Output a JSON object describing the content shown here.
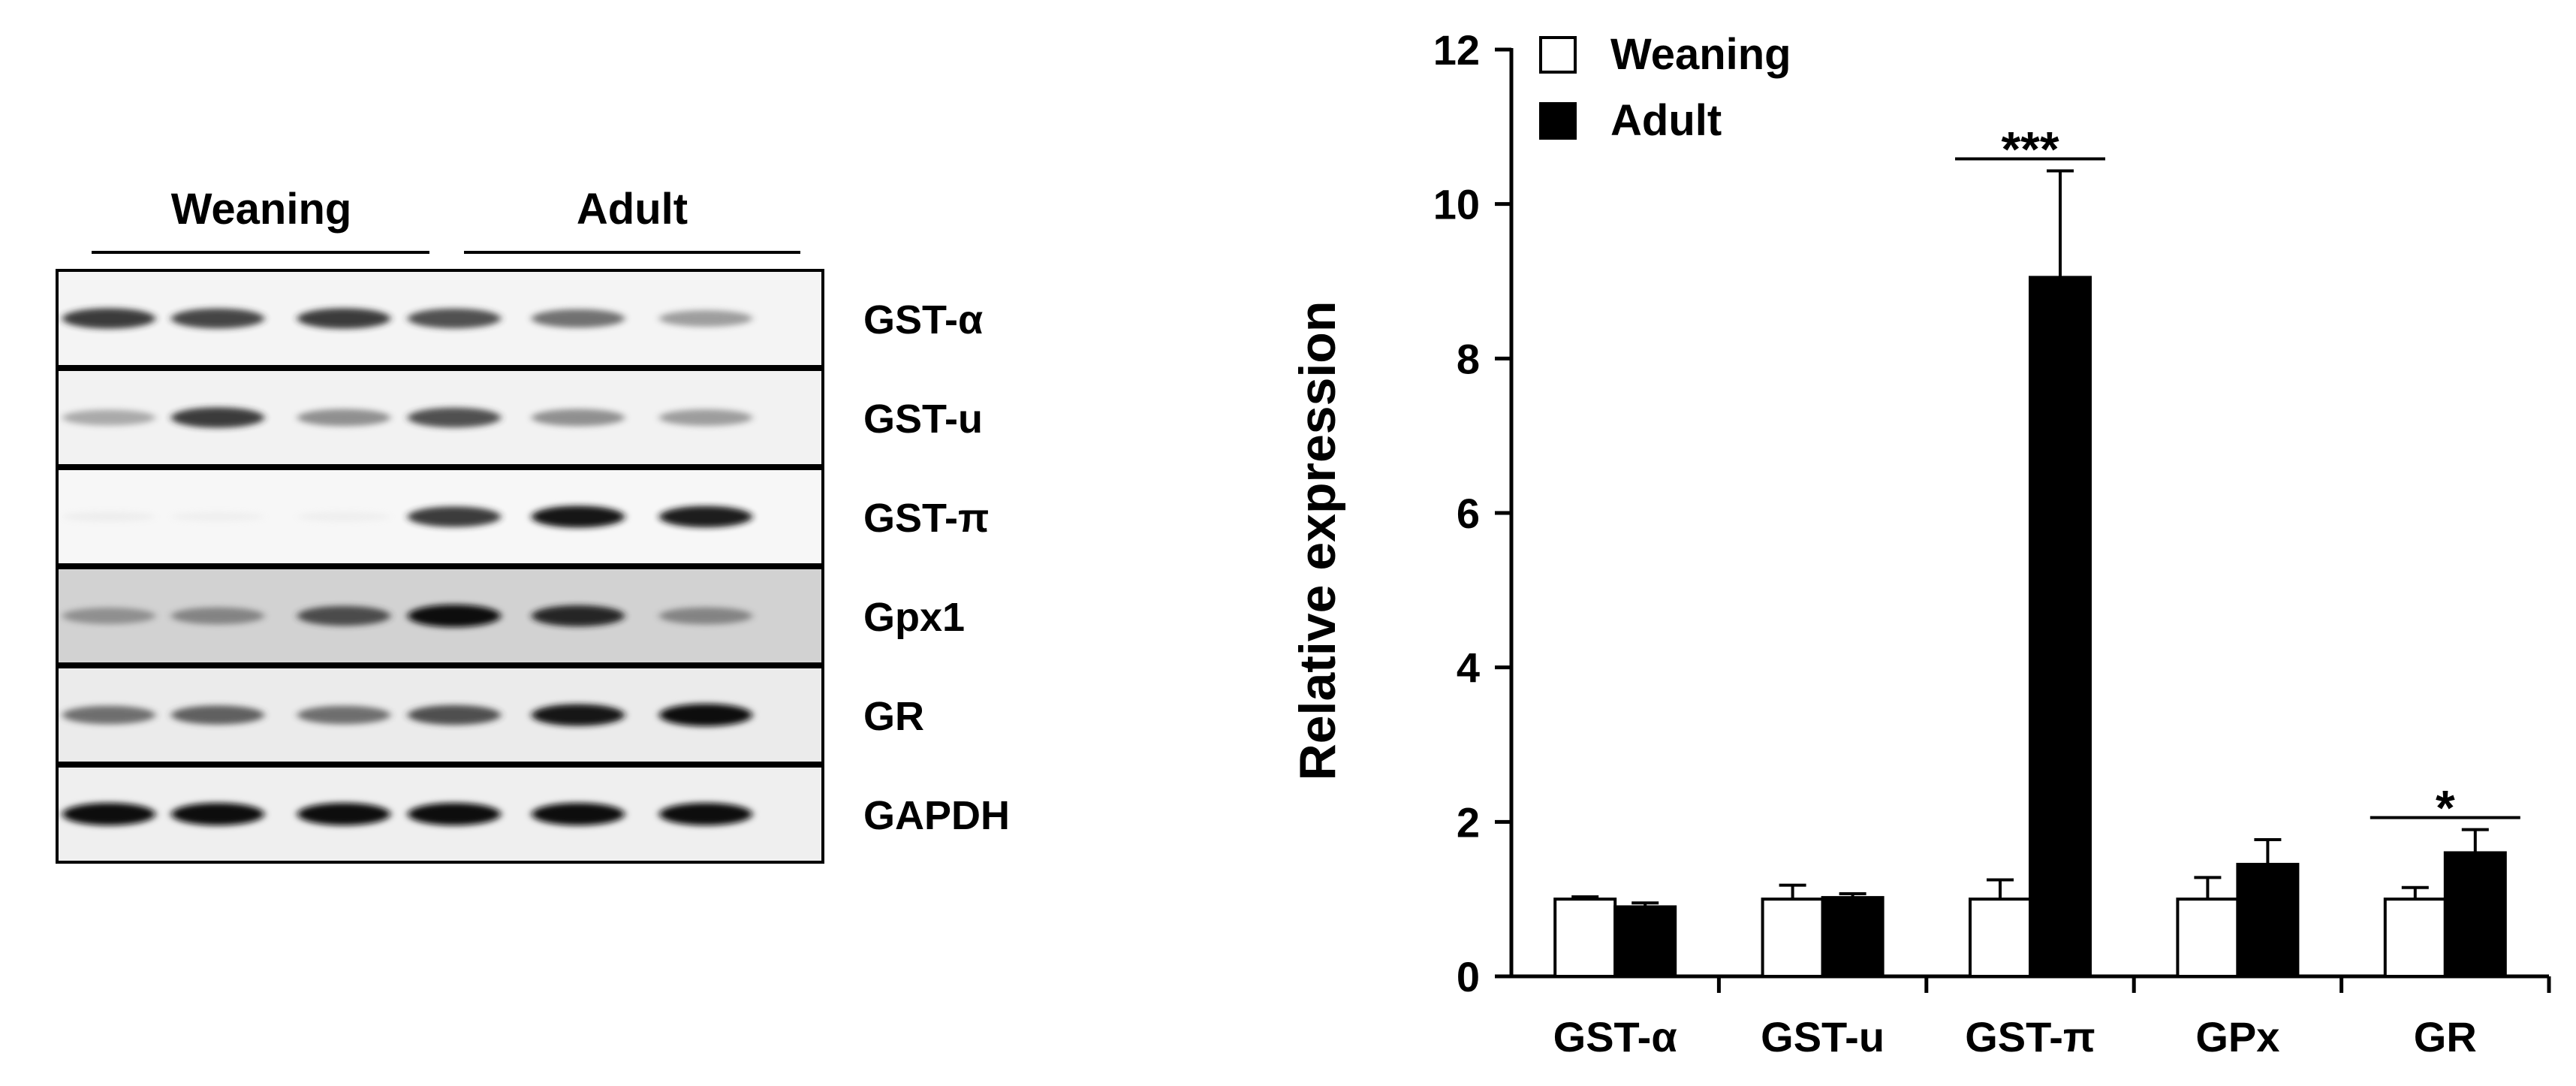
{
  "blot": {
    "group_labels": [
      "Weaning",
      "Adult"
    ],
    "bands": [
      {
        "label": "GST-α",
        "intensities": [
          0.85,
          0.82,
          0.85,
          0.8,
          0.7,
          0.55
        ]
      },
      {
        "label": "GST-u",
        "intensities": [
          0.5,
          0.85,
          0.6,
          0.8,
          0.6,
          0.55
        ]
      },
      {
        "label": "GST-π",
        "intensities": [
          0.08,
          0.03,
          0.05,
          0.85,
          0.95,
          0.92
        ]
      },
      {
        "label": "Gpx1",
        "intensities": [
          0.55,
          0.6,
          0.8,
          1.0,
          0.9,
          0.6
        ]
      },
      {
        "label": "GR",
        "intensities": [
          0.7,
          0.75,
          0.7,
          0.8,
          0.95,
          1.0
        ]
      },
      {
        "label": "GAPDH",
        "intensities": [
          1.0,
          1.0,
          1.0,
          1.0,
          1.0,
          1.0
        ]
      }
    ]
  },
  "chart_data": {
    "type": "bar",
    "title": "",
    "xlabel": "",
    "ylabel": "Relative expression",
    "ylim": [
      0,
      12
    ],
    "yticks": [
      "0",
      "2",
      "4",
      "6",
      "8",
      "10",
      "12"
    ],
    "categories": [
      "GST-α",
      "GST-u",
      "GST-π",
      "GPx",
      "GR"
    ],
    "series": [
      {
        "name": "Weaning",
        "color": "#ffffff",
        "values": [
          1.0,
          1.0,
          1.0,
          1.0,
          1.0
        ],
        "errors": [
          0.03,
          0.18,
          0.25,
          0.28,
          0.15
        ]
      },
      {
        "name": "Adult",
        "color": "#000000",
        "values": [
          0.9,
          1.02,
          9.05,
          1.45,
          1.6
        ],
        "errors": [
          0.05,
          0.05,
          1.38,
          0.32,
          0.3
        ]
      }
    ],
    "significance": [
      {
        "category": "GST-π",
        "label": "***"
      },
      {
        "category": "GR",
        "label": "*"
      }
    ],
    "legend_position": "top-left"
  }
}
